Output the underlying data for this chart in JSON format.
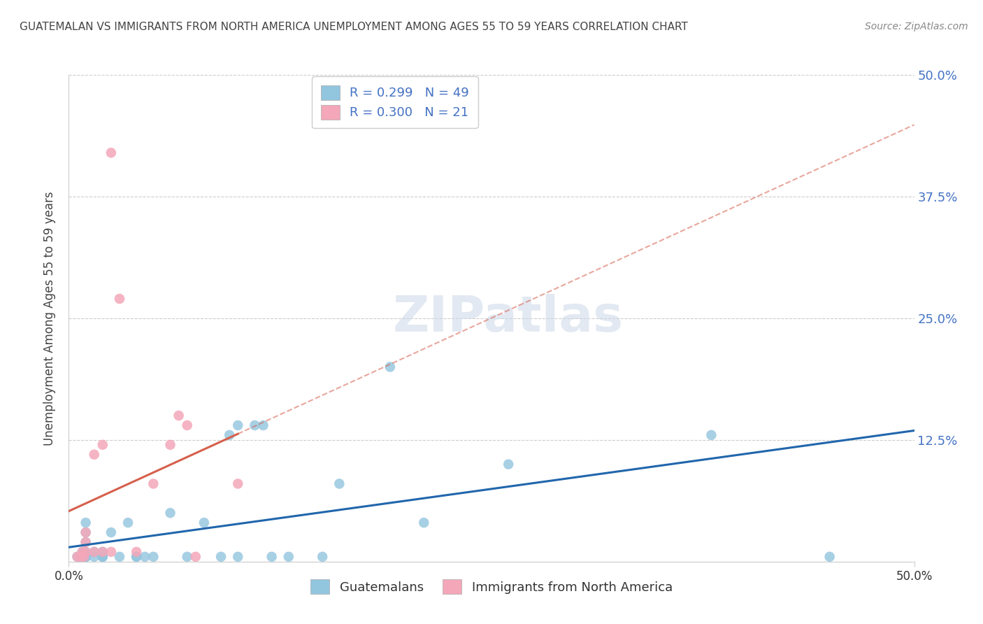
{
  "title": "GUATEMALAN VS IMMIGRANTS FROM NORTH AMERICA UNEMPLOYMENT AMONG AGES 55 TO 59 YEARS CORRELATION CHART",
  "source": "Source: ZipAtlas.com",
  "ylabel": "Unemployment Among Ages 55 to 59 years",
  "xlim": [
    0.0,
    0.5
  ],
  "ylim": [
    0.0,
    0.5
  ],
  "ytick_positions": [
    0.0,
    0.125,
    0.25,
    0.375,
    0.5
  ],
  "yticklabels_right": [
    "",
    "12.5%",
    "25.0%",
    "37.5%",
    "50.0%"
  ],
  "xtick_positions": [
    0.0,
    0.1,
    0.2,
    0.3,
    0.4,
    0.5
  ],
  "blue_R": 0.299,
  "blue_N": 49,
  "pink_R": 0.3,
  "pink_N": 21,
  "blue_color": "#92c5de",
  "pink_color": "#f4a7b9",
  "blue_line_color": "#2166ac",
  "pink_line_color": "#d6604d",
  "grid_color": "#cccccc",
  "watermark_text": "ZIPatlas",
  "blue_scatter_x": [
    0.005,
    0.007,
    0.008,
    0.008,
    0.009,
    0.009,
    0.009,
    0.009,
    0.01,
    0.01,
    0.01,
    0.01,
    0.01,
    0.01,
    0.01,
    0.01,
    0.01,
    0.01,
    0.015,
    0.015,
    0.02,
    0.02,
    0.02,
    0.02,
    0.025,
    0.03,
    0.035,
    0.04,
    0.04,
    0.045,
    0.05,
    0.06,
    0.07,
    0.08,
    0.09,
    0.095,
    0.1,
    0.1,
    0.11,
    0.115,
    0.12,
    0.13,
    0.15,
    0.16,
    0.19,
    0.21,
    0.26,
    0.38,
    0.45
  ],
  "blue_scatter_y": [
    0.005,
    0.005,
    0.005,
    0.01,
    0.005,
    0.005,
    0.005,
    0.01,
    0.005,
    0.005,
    0.005,
    0.005,
    0.01,
    0.02,
    0.03,
    0.04,
    0.005,
    0.005,
    0.005,
    0.01,
    0.005,
    0.005,
    0.005,
    0.01,
    0.03,
    0.005,
    0.04,
    0.005,
    0.005,
    0.005,
    0.005,
    0.05,
    0.005,
    0.04,
    0.005,
    0.13,
    0.14,
    0.005,
    0.14,
    0.14,
    0.005,
    0.005,
    0.005,
    0.08,
    0.2,
    0.04,
    0.1,
    0.13,
    0.005
  ],
  "pink_scatter_x": [
    0.005,
    0.007,
    0.008,
    0.009,
    0.01,
    0.01,
    0.01,
    0.015,
    0.015,
    0.02,
    0.02,
    0.025,
    0.025,
    0.03,
    0.04,
    0.05,
    0.06,
    0.065,
    0.07,
    0.075,
    0.1
  ],
  "pink_scatter_y": [
    0.005,
    0.005,
    0.01,
    0.005,
    0.01,
    0.02,
    0.03,
    0.01,
    0.11,
    0.01,
    0.12,
    0.01,
    0.42,
    0.27,
    0.01,
    0.08,
    0.12,
    0.15,
    0.14,
    0.005,
    0.08
  ],
  "legend_label_blue": "Guatemalans",
  "legend_label_pink": "Immigrants from North America",
  "background_color": "#ffffff",
  "title_color": "#444444",
  "legend_text_color": "#4472c4",
  "bottom_label_color": "#333333",
  "right_label_color": "#4472c4",
  "source_color": "#888888"
}
